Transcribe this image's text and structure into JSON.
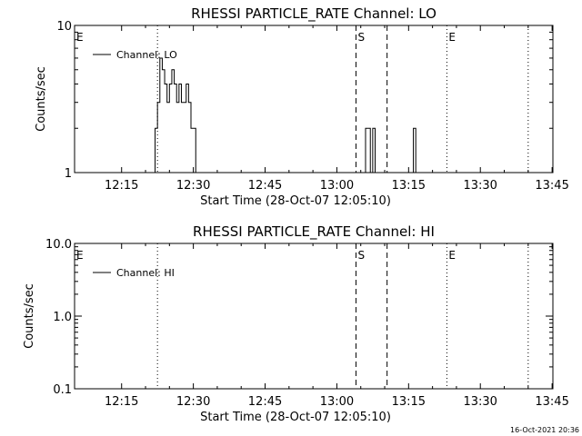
{
  "chart_data": [
    {
      "type": "line",
      "title": "RHESSI PARTICLE_RATE Channel: LO",
      "xlabel": "Start Time (28-Oct-07 12:05:10)",
      "ylabel": "Counts/sec",
      "yscale": "log",
      "ylim": [
        1,
        10
      ],
      "ytick_labels": [
        "1",
        "10"
      ],
      "xlim_minutes_after_1205": [
        0,
        100
      ],
      "xtick_labels": [
        "12:15",
        "12:30",
        "12:45",
        "13:00",
        "13:15",
        "13:30",
        "13:45"
      ],
      "legend": "top-left",
      "series": [
        {
          "name": "Channel: LO",
          "x": [
            "12:21:30",
            "12:22:00",
            "12:22:30",
            "12:23:00",
            "12:23:30",
            "12:24:00",
            "12:24:30",
            "12:25:00",
            "12:25:30",
            "12:26:00",
            "12:26:30",
            "12:27:00",
            "12:27:30",
            "12:28:00",
            "12:28:30",
            "12:29:00",
            "12:29:30",
            "12:30:00",
            "12:30:30",
            "12:31:00",
            "13:05:30",
            "13:06:00",
            "13:06:30",
            "13:07:00",
            "13:07:30",
            "13:08:00",
            "13:15:30",
            "13:16:00",
            "13:16:30"
          ],
          "y": [
            1,
            2,
            3,
            6,
            5,
            4,
            3,
            4,
            5,
            4,
            3,
            4,
            3,
            3,
            4,
            3,
            2,
            2,
            1,
            1,
            1,
            2,
            2,
            1,
            2,
            1,
            1,
            2,
            1
          ]
        }
      ],
      "markers": [
        {
          "label": "E",
          "time": "12:05:10",
          "style": "dotted"
        },
        {
          "label": "",
          "time": "12:22:30",
          "style": "dotted"
        },
        {
          "label": "S",
          "time": "13:04:00",
          "style": "dashed"
        },
        {
          "label": "",
          "time": "13:10:30",
          "style": "dashed"
        },
        {
          "label": "E",
          "time": "13:23:00",
          "style": "dotted"
        },
        {
          "label": "",
          "time": "13:40:00",
          "style": "dotted"
        }
      ]
    },
    {
      "type": "line",
      "title": "RHESSI PARTICLE_RATE Channel: HI",
      "xlabel": "Start Time (28-Oct-07 12:05:10)",
      "ylabel": "Counts/sec",
      "yscale": "log",
      "ylim": [
        0.1,
        10
      ],
      "ytick_labels": [
        "0.1",
        "1.0",
        "10.0"
      ],
      "xlim_minutes_after_1205": [
        0,
        100
      ],
      "xtick_labels": [
        "12:15",
        "12:30",
        "12:45",
        "13:00",
        "13:15",
        "13:30",
        "13:45"
      ],
      "legend": "top-left",
      "series": [
        {
          "name": "Channel: HI",
          "x": [],
          "y": []
        }
      ],
      "markers": [
        {
          "label": "E",
          "time": "12:05:10",
          "style": "dotted"
        },
        {
          "label": "",
          "time": "12:22:30",
          "style": "dotted"
        },
        {
          "label": "S",
          "time": "13:04:00",
          "style": "dashed"
        },
        {
          "label": "",
          "time": "13:10:30",
          "style": "dashed"
        },
        {
          "label": "E",
          "time": "13:23:00",
          "style": "dotted"
        },
        {
          "label": "",
          "time": "13:40:00",
          "style": "dotted"
        }
      ]
    }
  ],
  "footer_timestamp": "16-Oct-2021 20:36"
}
